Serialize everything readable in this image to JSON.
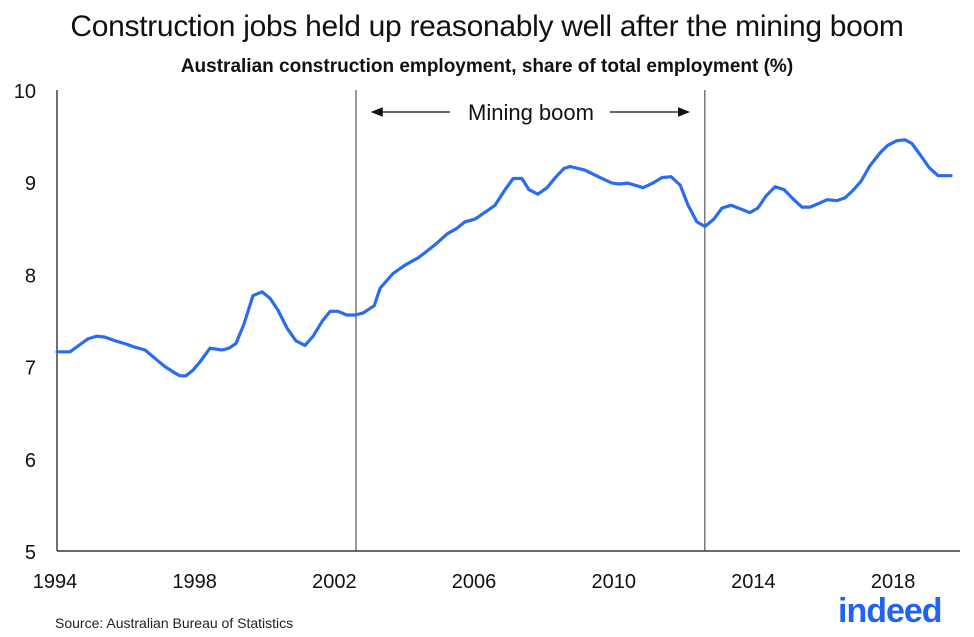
{
  "chart_data": {
    "type": "line",
    "title": "Construction jobs held up reasonably well after the mining boom",
    "subtitle": "Australian construction employment, share of total employment (%)",
    "xlabel": "",
    "ylabel": "",
    "xlim": [
      1994,
      2020
    ],
    "ylim": [
      5,
      10
    ],
    "x_ticks": [
      1994,
      1998,
      2002,
      2006,
      2010,
      2014,
      2018
    ],
    "y_ticks": [
      5,
      6,
      7,
      8,
      9,
      10
    ],
    "grid": false,
    "line_color": "#2a6cf0",
    "x": [
      1994.06,
      1994.43,
      1994.72,
      1994.94,
      1995.2,
      1995.43,
      1995.72,
      1996.0,
      1996.29,
      1996.58,
      1996.86,
      1997.15,
      1997.44,
      1997.58,
      1997.75,
      1997.95,
      1998.15,
      1998.44,
      1998.78,
      1998.98,
      1999.18,
      1999.41,
      1999.67,
      1999.93,
      2000.16,
      2000.39,
      2000.64,
      2000.9,
      2001.16,
      2001.39,
      2001.65,
      2001.88,
      2002.1,
      2002.36,
      2002.59,
      2002.82,
      2003.14,
      2003.31,
      2003.68,
      2004.02,
      2004.4,
      2004.68,
      2004.94,
      2005.23,
      2005.51,
      2005.74,
      2006.03,
      2006.34,
      2006.6,
      2006.89,
      2007.12,
      2007.37,
      2007.57,
      2007.83,
      2008.09,
      2008.35,
      2008.58,
      2008.75,
      2009.18,
      2009.61,
      2009.95,
      2010.15,
      2010.41,
      2010.84,
      2011.12,
      2011.38,
      2011.64,
      2011.9,
      2012.13,
      2012.38,
      2012.61,
      2012.87,
      2013.1,
      2013.36,
      2013.9,
      2014.13,
      2014.36,
      2014.62,
      2014.88,
      2015.13,
      2015.39,
      2015.62,
      2015.88,
      2016.11,
      2016.39,
      2016.62,
      2016.85,
      2017.08,
      2017.34,
      2017.63,
      2017.85,
      2018.11,
      2018.34,
      2018.54,
      2018.77,
      2019.03,
      2019.29,
      2019.46,
      2019.66
    ],
    "values": [
      7.16,
      7.16,
      7.24,
      7.3,
      7.33,
      7.32,
      7.28,
      7.25,
      7.21,
      7.18,
      7.09,
      7.0,
      6.93,
      6.9,
      6.9,
      6.96,
      7.05,
      7.2,
      7.18,
      7.2,
      7.25,
      7.46,
      7.77,
      7.81,
      7.74,
      7.61,
      7.42,
      7.28,
      7.23,
      7.33,
      7.49,
      7.6,
      7.6,
      7.56,
      7.56,
      7.58,
      7.66,
      7.85,
      8.01,
      8.1,
      8.18,
      8.26,
      8.34,
      8.44,
      8.5,
      8.57,
      8.6,
      8.68,
      8.75,
      8.92,
      9.04,
      9.04,
      8.92,
      8.87,
      8.94,
      9.06,
      9.15,
      9.17,
      9.13,
      9.05,
      8.99,
      8.98,
      8.99,
      8.94,
      8.99,
      9.05,
      9.06,
      8.97,
      8.75,
      8.57,
      8.52,
      8.6,
      8.72,
      8.75,
      8.67,
      8.72,
      8.85,
      8.95,
      8.92,
      8.82,
      8.73,
      8.73,
      8.77,
      8.81,
      8.8,
      8.83,
      8.91,
      9.01,
      9.18,
      9.32,
      9.4,
      9.45,
      9.46,
      9.42,
      9.3,
      9.16,
      9.07,
      9.07,
      9.07
    ],
    "annotations": {
      "vlines": [
        2002.62,
        2012.61
      ],
      "span_label": "Mining boom"
    }
  },
  "source": "Source: Australian Bureau of Statistics",
  "logo": "indeed",
  "brand_color": "#2164f3"
}
